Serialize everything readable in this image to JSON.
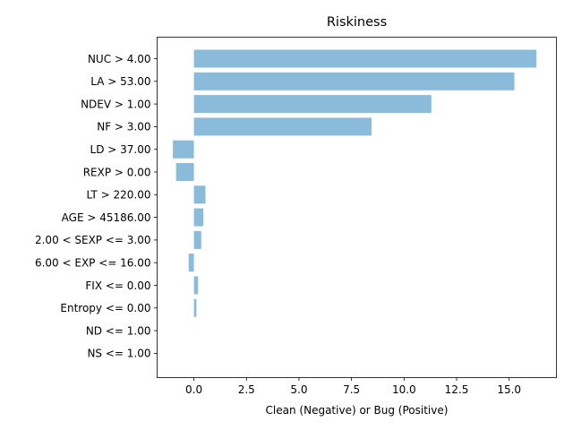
{
  "chart_data": {
    "type": "bar",
    "orientation": "horizontal",
    "title": "Riskiness",
    "xlabel": "Clean (Negative) or Bug (Positive)",
    "ylabel": "",
    "xlim": [
      -1.75,
      17.25
    ],
    "xticks": [
      0.0,
      2.5,
      5.0,
      7.5,
      10.0,
      12.5,
      15.0
    ],
    "xtick_labels": [
      "0.0",
      "2.5",
      "5.0",
      "7.5",
      "10.0",
      "12.5",
      "15.0"
    ],
    "bar_color": "#8bbbdb",
    "grid": false,
    "categories": [
      "NUC > 4.00",
      "LA > 53.00",
      "NDEV > 1.00",
      "NF > 3.00",
      "LD > 37.00",
      "REXP > 0.00",
      "LT > 220.00",
      "AGE > 45186.00",
      "2.00 < SEXP <= 3.00",
      "6.00 < EXP <= 16.00",
      "FIX <= 0.00",
      "Entropy <= 0.00",
      "ND <= 1.00",
      "NS <= 1.00"
    ],
    "values": [
      16.3,
      15.25,
      11.3,
      8.45,
      -1.0,
      -0.85,
      0.55,
      0.45,
      0.35,
      -0.25,
      0.2,
      0.12,
      0.0,
      0.0
    ]
  }
}
